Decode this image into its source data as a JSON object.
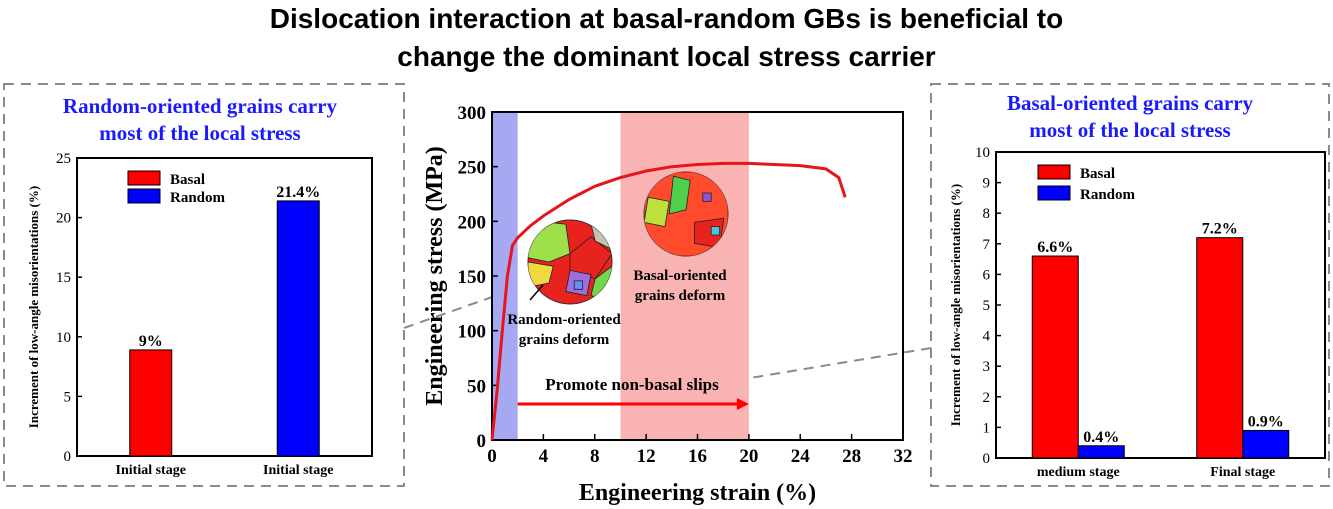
{
  "title_line1": "Dislocation interaction at basal-random GBs is beneficial to",
  "title_line2": "change the dominant local stress carrier",
  "colors": {
    "basal": "#ff0000",
    "random": "#0000ff",
    "curve": "#e8141c",
    "blue_band": "#a6a8f2",
    "red_band": "#f9b3b3",
    "title_blue": "#1a1aff"
  },
  "chart_data": [
    {
      "type": "bar",
      "panel": "left",
      "title": [
        "Random-oriented grains carry",
        "most of the local stress"
      ],
      "ylabel": "Increment of low-angle misorientations (%)",
      "categories": [
        "Initial stage",
        "Initial stage"
      ],
      "series": [
        {
          "name": "Basal",
          "values": [
            8.9,
            null
          ],
          "labels": [
            "9%",
            ""
          ]
        },
        {
          "name": "Random",
          "values": [
            null,
            21.4
          ],
          "labels": [
            "",
            "21.4%"
          ]
        }
      ],
      "ylim": [
        0,
        25
      ],
      "yticks": [
        0,
        5,
        10,
        15,
        20,
        25
      ],
      "legend": "top-left"
    },
    {
      "type": "line",
      "panel": "center",
      "xlabel": "Engineering strain (%)",
      "ylabel": "Engineering stress (MPa)",
      "xlim": [
        0,
        32
      ],
      "ylim": [
        0,
        300
      ],
      "xticks": [
        0,
        4,
        8,
        12,
        16,
        20,
        24,
        28,
        32
      ],
      "yticks": [
        0,
        50,
        100,
        150,
        200,
        250,
        300
      ],
      "series": [
        {
          "x": [
            0,
            0.4,
            0.8,
            1.2,
            1.6,
            2.0,
            3,
            4,
            6,
            8,
            10,
            12,
            14,
            16,
            18,
            20,
            22,
            24,
            26,
            27,
            27.5
          ],
          "y": [
            0,
            45,
            100,
            150,
            178,
            185,
            196,
            205,
            220,
            232,
            240,
            246,
            250,
            252,
            253,
            253,
            252,
            251,
            248,
            240,
            222
          ]
        }
      ],
      "bands": [
        {
          "x": [
            0,
            2
          ],
          "color": "blue"
        },
        {
          "x": [
            10,
            20
          ],
          "color": "red"
        }
      ],
      "annotations": {
        "random_deform": [
          "Random-oriented",
          "grains deform"
        ],
        "basal_deform": [
          "Basal-oriented",
          "grains deform"
        ],
        "arrow": "Promote non-basal slips"
      }
    },
    {
      "type": "bar",
      "panel": "right",
      "title": [
        "Basal-oriented grains carry",
        "most of the local stress"
      ],
      "ylabel": "Increment of low-angle misorientations (%)",
      "categories": [
        "medium stage",
        "Final stage"
      ],
      "series": [
        {
          "name": "Basal",
          "values": [
            6.6,
            7.2
          ],
          "labels": [
            "6.6%",
            "7.2%"
          ]
        },
        {
          "name": "Random",
          "values": [
            0.4,
            0.9
          ],
          "labels": [
            "0.4%",
            "0.9%"
          ]
        }
      ],
      "ylim": [
        0,
        10
      ],
      "yticks": [
        0,
        1,
        2,
        3,
        4,
        5,
        6,
        7,
        8,
        9,
        10
      ],
      "legend": "top-left"
    }
  ]
}
